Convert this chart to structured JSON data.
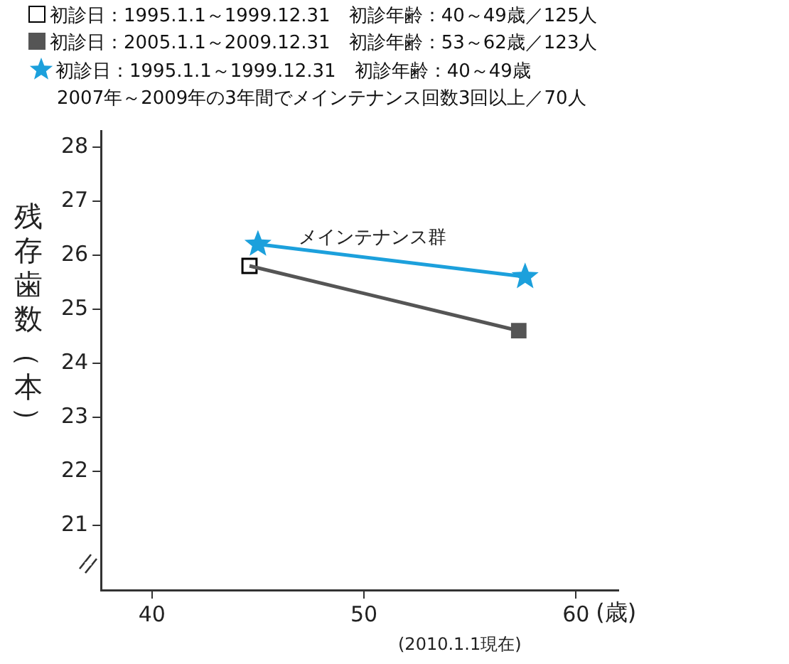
{
  "chart_data": {
    "type": "line",
    "ylabel": "残存歯数（本）",
    "xlabel": "(歳)",
    "xlim": [
      37.6,
      62
    ],
    "xticks": [
      40,
      50,
      60
    ],
    "ylim": [
      19.8,
      28.3
    ],
    "yticks": [
      21,
      22,
      23,
      24,
      25,
      26,
      27,
      28
    ],
    "grid": false,
    "legend": "top",
    "line_style": "solid",
    "series": [
      {
        "color": "#555555",
        "x": [
          44.6,
          57.3
        ],
        "values": [
          25.8,
          24.6
        ],
        "marker": "none"
      },
      {
        "type": "scatter",
        "name": "初診日：1995.1.1～1999.12.31　初診年齢：40～49歳／125人",
        "color": "#000000",
        "x": [
          44.6
        ],
        "values": [
          25.8
        ],
        "marker": "square-open"
      },
      {
        "type": "scatter",
        "name": "初診日：2005.1.1～2009.12.31　初診年齢：53～62歳／123人",
        "color": "#555555",
        "x": [
          57.3
        ],
        "values": [
          24.6
        ],
        "marker": "square"
      },
      {
        "name": "初診日：1995.1.1～1999.12.31　初診年齢：40～49歳",
        "color": "#1ca0dc",
        "x": [
          45,
          57.6
        ],
        "values": [
          26.2,
          25.6
        ],
        "marker": "star"
      }
    ],
    "annotations": [
      "2007年～2009年の3年間でメインテナンス回数3回以上／70人",
      "メインテナンス群",
      "(2010.1.1現在)"
    ]
  }
}
